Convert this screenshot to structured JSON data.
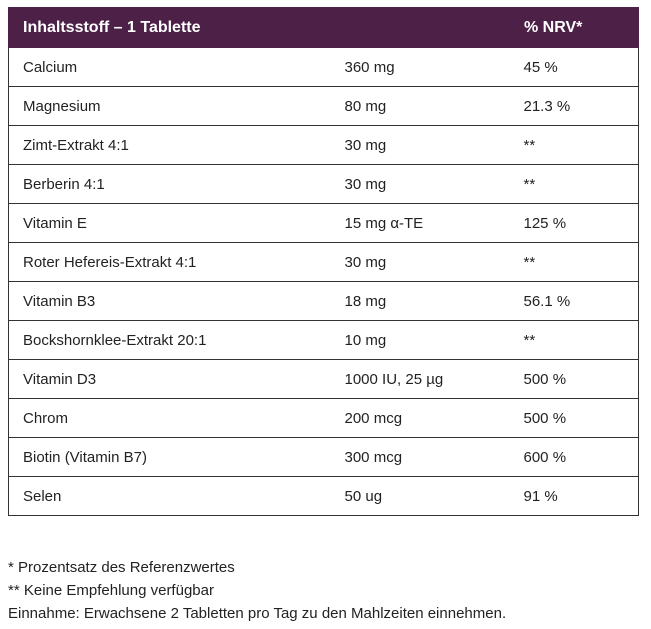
{
  "table": {
    "headers": [
      "Inhaltsstoff – 1 Tablette",
      "",
      "% NRV*"
    ],
    "rows": [
      {
        "name": "Calcium",
        "amount": "360 mg",
        "nrv": "45 %"
      },
      {
        "name": "Magnesium",
        "amount": "80 mg",
        "nrv": "21.3 %"
      },
      {
        "name": "Zimt-Extrakt 4:1",
        "amount": "30 mg",
        "nrv": "**"
      },
      {
        "name": "Berberin 4:1",
        "amount": "30 mg",
        "nrv": "**"
      },
      {
        "name": "Vitamin E",
        "amount": "15 mg α-TE",
        "nrv": "125 %"
      },
      {
        "name": "Roter Hefereis-Extrakt 4:1",
        "amount": "30 mg",
        "nrv": "**"
      },
      {
        "name": "Vitamin B3",
        "amount": "18 mg",
        "nrv": "56.1 %"
      },
      {
        "name": "Bockshornklee-Extrakt 20:1",
        "amount": "10 mg",
        "nrv": "**"
      },
      {
        "name": "Vitamin D3",
        "amount": "1000 IU, 25 µg",
        "nrv": "500 %"
      },
      {
        "name": "Chrom",
        "amount": "200 mcg",
        "nrv": "500 %"
      },
      {
        "name": "Biotin (Vitamin B7)",
        "amount": "300 mcg",
        "nrv": "600 %"
      },
      {
        "name": "Selen",
        "amount": "50 ug",
        "nrv": "91 %"
      }
    ]
  },
  "notes": {
    "nrv_footnote": "* Prozentsatz des Referenzwertes",
    "no_recommendation": "** Keine Empfehlung verfügbar",
    "intake": "Einnahme: Erwachsene 2 Tabletten pro Tag zu den Mahlzeiten einnehmen."
  },
  "colors": {
    "header_background": "#4d2147",
    "header_text": "#ffffff",
    "border": "#333333"
  }
}
